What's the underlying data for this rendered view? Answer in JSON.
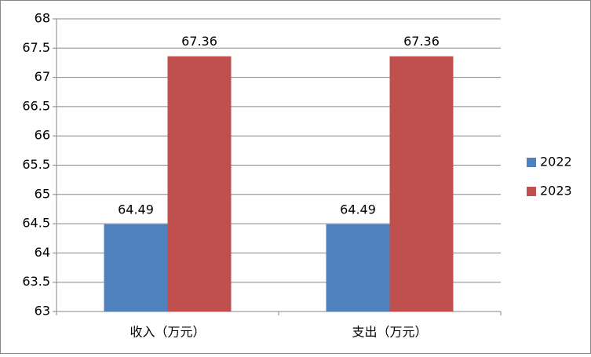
{
  "chart_data": {
    "type": "bar",
    "categories": [
      "收入（万元）",
      "支出（万元）"
    ],
    "series": [
      {
        "name": "2022",
        "color": "#4f81bd",
        "values": [
          64.49,
          64.49
        ]
      },
      {
        "name": "2023",
        "color": "#c0504d",
        "values": [
          67.36,
          67.36
        ]
      }
    ],
    "ylim": [
      63,
      68
    ],
    "yticks": [
      63,
      63.5,
      64,
      64.5,
      65,
      65.5,
      66,
      66.5,
      67,
      67.5,
      68
    ],
    "grid": true,
    "legend": "right"
  }
}
